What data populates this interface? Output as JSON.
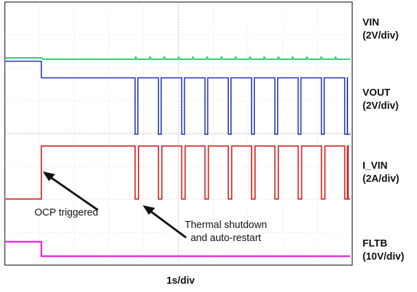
{
  "chart_data": {
    "type": "line",
    "xlabel": "1s/div",
    "x_divisions": 10,
    "y_divisions": 8,
    "grid": true,
    "channels": [
      {
        "name": "VIN",
        "scale": "(2V/div)",
        "color": "#2ecc71"
      },
      {
        "name": "VOUT",
        "scale": "(2V/div)",
        "color": "#1f2fbf"
      },
      {
        "name": "I_VIN",
        "scale": "(2A/div)",
        "color": "#d62a2a"
      },
      {
        "name": "FLTB",
        "scale": "(10V/div)",
        "color": "#e42ae8"
      }
    ],
    "annotations": [
      {
        "text": "OCP triggered"
      },
      {
        "text_lines": [
          "Thermal shutdown",
          "and auto-restart"
        ]
      }
    ]
  }
}
